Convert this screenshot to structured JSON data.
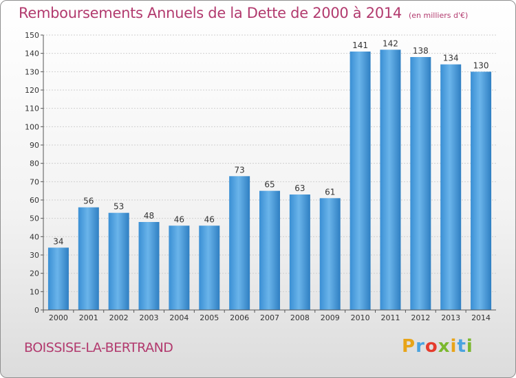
{
  "header": {
    "title": "Remboursements Annuels de la Dette de 2000 à 2014",
    "unit": "(en milliers d'€)"
  },
  "footer": {
    "commune": "BOISSISE-LA-BERTRAND",
    "logo_text": "Proxiti",
    "logo_colors": [
      "#e8a418",
      "#4aa3df",
      "#e53b2c",
      "#7bb82e",
      "#e8a418",
      "#4aa3df",
      "#7bb82e"
    ]
  },
  "colors": {
    "bar": "#4a9bdc",
    "bar_light": "#6fb5ea",
    "bar_dark": "#2f7fc2",
    "text_accent": "#b23a6e"
  },
  "chart_data": {
    "type": "bar",
    "title": "Remboursements Annuels de la Dette de 2000 à 2014",
    "subtitle": "(en milliers d'€)",
    "xlabel": "",
    "ylabel": "",
    "categories": [
      "2000",
      "2001",
      "2002",
      "2003",
      "2004",
      "2005",
      "2006",
      "2007",
      "2008",
      "2009",
      "2010",
      "2011",
      "2012",
      "2013",
      "2014"
    ],
    "values": [
      34,
      56,
      53,
      48,
      46,
      46,
      73,
      65,
      63,
      61,
      141,
      142,
      138,
      134,
      130
    ],
    "ylim": [
      0,
      150
    ],
    "yticks": [
      0,
      10,
      20,
      30,
      40,
      50,
      60,
      70,
      80,
      90,
      100,
      110,
      120,
      130,
      140,
      150
    ],
    "grid": true,
    "data_labels": true
  }
}
